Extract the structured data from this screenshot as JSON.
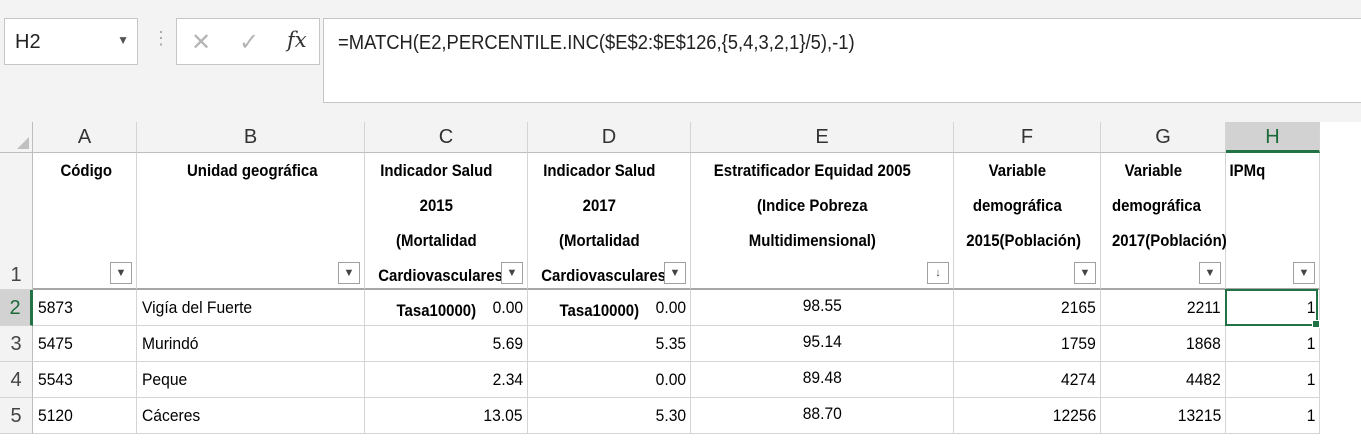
{
  "name_box": {
    "value": "H2"
  },
  "formula_bar": {
    "cancel_glyph": "✕",
    "enter_glyph": "✓",
    "fx_glyph": "fx",
    "formula": "=MATCH(E2,PERCENTILE.INC($E$2:$E$126,{5,4,3,2,1}/5),-1)"
  },
  "columns": [
    "A",
    "B",
    "C",
    "D",
    "E",
    "F",
    "G",
    "H"
  ],
  "selected_column": "H",
  "rows": [
    "1",
    "2",
    "3",
    "4",
    "5"
  ],
  "headers": [
    "Código",
    "Unidad geográfica",
    "Indicador Salud 2015 (Mortalidad Cardiovasculares- Tasa10000)",
    "Indicador Salud 2017 (Mortalidad Cardiovasculares- Tasa10000)",
    "Estratificador Equidad 2005 (Indice Pobreza Multidimensional)",
    "Variable demográfica 2015(Población)",
    "Variable demográfica 2017(Población)",
    "IPMq"
  ],
  "filter_icons": [
    "▼",
    "▼",
    "▼",
    "▼",
    "↓",
    "▼",
    "▼",
    "▼"
  ],
  "data_rows": [
    [
      "5873",
      "Vigía del Fuerte",
      "0.00",
      "0.00",
      "98.55",
      "2165",
      "2211",
      "1"
    ],
    [
      "5475",
      "Murindó",
      "5.69",
      "5.35",
      "95.14",
      "1759",
      "1868",
      "1"
    ],
    [
      "5543",
      "Peque",
      "2.34",
      "0.00",
      "89.48",
      "4274",
      "4482",
      "1"
    ],
    [
      "5120",
      "Cáceres",
      "13.05",
      "5.30",
      "88.70",
      "12256",
      "13215",
      "1"
    ]
  ],
  "colors": {
    "accent": "#217346",
    "header_bg": "#f3f3f3",
    "selected_header_bg": "#d2d2d2"
  }
}
